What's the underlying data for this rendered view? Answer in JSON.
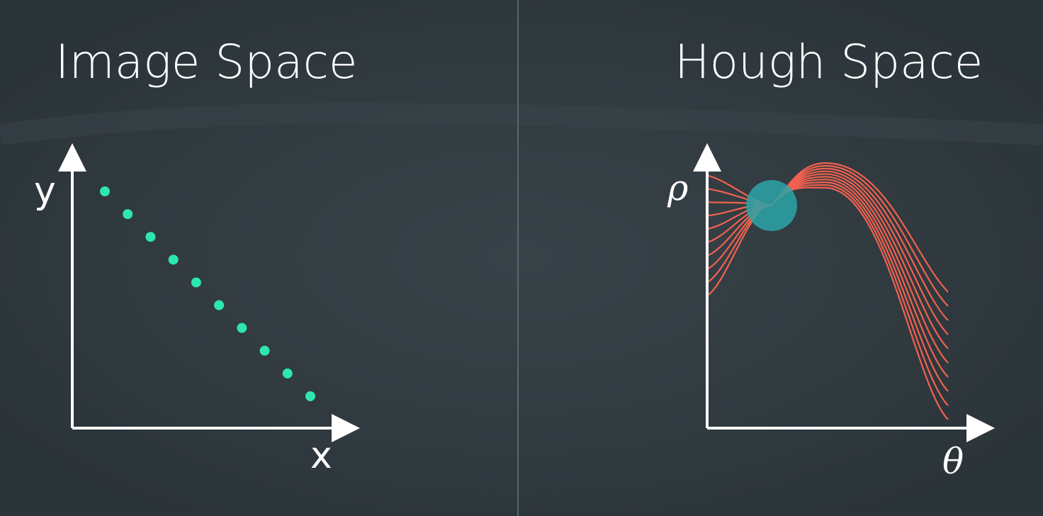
{
  "left_panel": {
    "title": "Image Space",
    "y_axis_label": "y",
    "x_axis_label": "x",
    "point_count": 10,
    "point_color": "#2ee6b0"
  },
  "right_panel": {
    "title": "Hough Space",
    "y_axis_label": "ρ",
    "x_axis_label": "θ",
    "curve_count": 10,
    "curve_color": "#f2614f",
    "intersection_color": "#2aa5a8"
  },
  "colors": {
    "background": "#2f393f",
    "axis": "#ffffff",
    "text": "#ffffff",
    "divider": "#5b666c"
  }
}
